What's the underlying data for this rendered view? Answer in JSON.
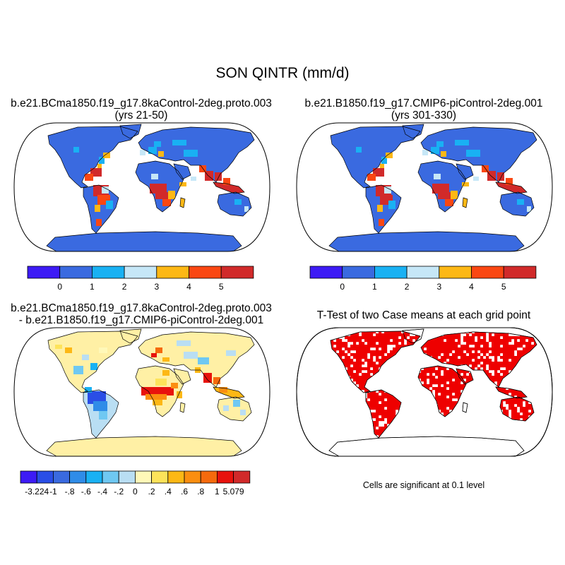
{
  "title": "SON QINTR (mm/d)",
  "panels": [
    {
      "title_line1": "b.e21.BCma1850.f19_g17.8kaControl-2deg.proto.003",
      "title_line2": "(yrs 21-50)"
    },
    {
      "title_line1": "b.e21.B1850.f19_g17.CMIP6-piControl-2deg.001",
      "title_line2": "(yrs 301-330)"
    },
    {
      "title_line1": "b.e21.BCma1850.f19_g17.8kaControl-2deg.proto.003",
      "title_line2": "- b.e21.B1850.f19_g17.CMIP6-piControl-2deg.001"
    },
    {
      "title_line1": "T-Test of two Case means at each grid point"
    }
  ],
  "significance_note": "Cells are significant at 0.1 level",
  "colorbar_main": {
    "colors": [
      "#3d1bf5",
      "#3a6ae0",
      "#19b1f3",
      "#c6e7f7",
      "#fdb815",
      "#fa4712",
      "#d12a2a"
    ],
    "labels": [
      "0",
      "1",
      "2",
      "3",
      "4",
      "5"
    ]
  },
  "colorbar_diff": {
    "colors": [
      "#3d1bf5",
      "#2a4ee6",
      "#3a6ae0",
      "#2f8ce8",
      "#19b1f3",
      "#6fc8f2",
      "#b9def3",
      "#fff8b8",
      "#fde35a",
      "#fdb815",
      "#fb8e10",
      "#f56a0d",
      "#e8120d",
      "#d12a2a"
    ],
    "labels": [
      "-3.224",
      "-1",
      "-.8",
      "-.6",
      "-.4",
      "-.2",
      "0",
      ".2",
      ".4",
      ".6",
      ".8",
      "1",
      "5.079"
    ]
  },
  "colors": {
    "land_base_main": "#3a6ae0",
    "land_base_diff": "#fff0a5",
    "significant": "#ee0000"
  }
}
